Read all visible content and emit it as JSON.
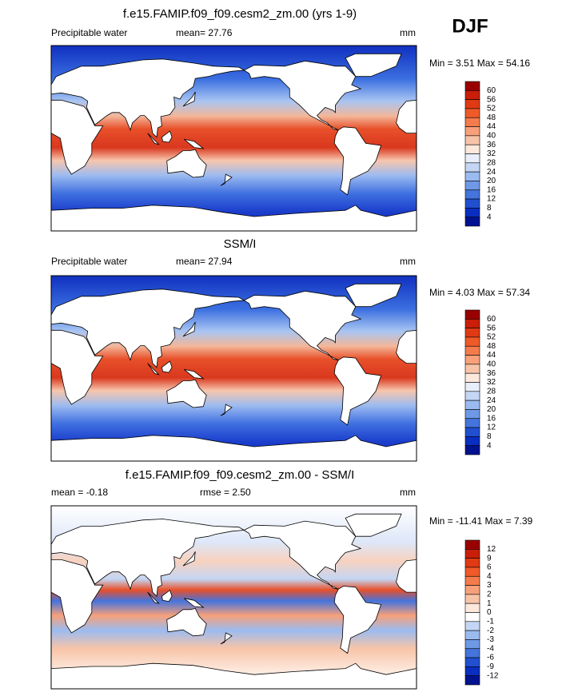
{
  "season": "DJF",
  "panels": [
    {
      "title": "f.e15.FAMIP.f09_f09.cesm2_zm.00 (yrs 1-9)",
      "left": "Precipitable water",
      "center": "mean=  27.76",
      "right": "mm",
      "minmax": "Min =  3.51 Max =  54.16",
      "colorbar": {
        "labels": [
          60,
          56,
          52,
          48,
          44,
          40,
          36,
          32,
          28,
          24,
          20,
          16,
          12,
          8,
          4
        ],
        "colors": [
          "#990000",
          "#c81e0a",
          "#e03a14",
          "#ef5a28",
          "#f47c4c",
          "#f7a07a",
          "#f8c4a8",
          "#fde8dc",
          "#e8eefa",
          "#c4d6f4",
          "#9bbbf0",
          "#6f98e6",
          "#4474dc",
          "#2050d0",
          "#0a2ec0",
          "#00128f"
        ]
      }
    },
    {
      "title": "SSM/I",
      "left": "Precipitable water",
      "center": "mean=  27.94",
      "right": "mm",
      "minmax": "Min =  4.03 Max =  57.34",
      "colorbar": {
        "labels": [
          60,
          56,
          52,
          48,
          44,
          40,
          36,
          32,
          28,
          24,
          20,
          16,
          12,
          8,
          4
        ],
        "colors": [
          "#990000",
          "#c81e0a",
          "#e03a14",
          "#ef5a28",
          "#f47c4c",
          "#f7a07a",
          "#f8c4a8",
          "#fde8dc",
          "#e8eefa",
          "#c4d6f4",
          "#9bbbf0",
          "#6f98e6",
          "#4474dc",
          "#2050d0",
          "#0a2ec0",
          "#00128f"
        ]
      }
    },
    {
      "title": "f.e15.FAMIP.f09_f09.cesm2_zm.00 - SSM/I",
      "left": "mean =  -0.18",
      "center": "rmse =   2.50",
      "right": "mm",
      "minmax": "Min = -11.41 Max =   7.39",
      "colorbar": {
        "labels": [
          12,
          9,
          6,
          4,
          3,
          2,
          1,
          0,
          -1,
          -2,
          -3,
          -4,
          -6,
          -9,
          -12
        ],
        "colors": [
          "#990000",
          "#c81e0a",
          "#e03a14",
          "#ef5a28",
          "#f47c4c",
          "#f7a07a",
          "#f8c4a8",
          "#fde8dc",
          "#ffffff",
          "#c4d6f4",
          "#9bbbf0",
          "#6f98e6",
          "#4474dc",
          "#2050d0",
          "#0a2ec0",
          "#00128f"
        ]
      }
    }
  ]
}
